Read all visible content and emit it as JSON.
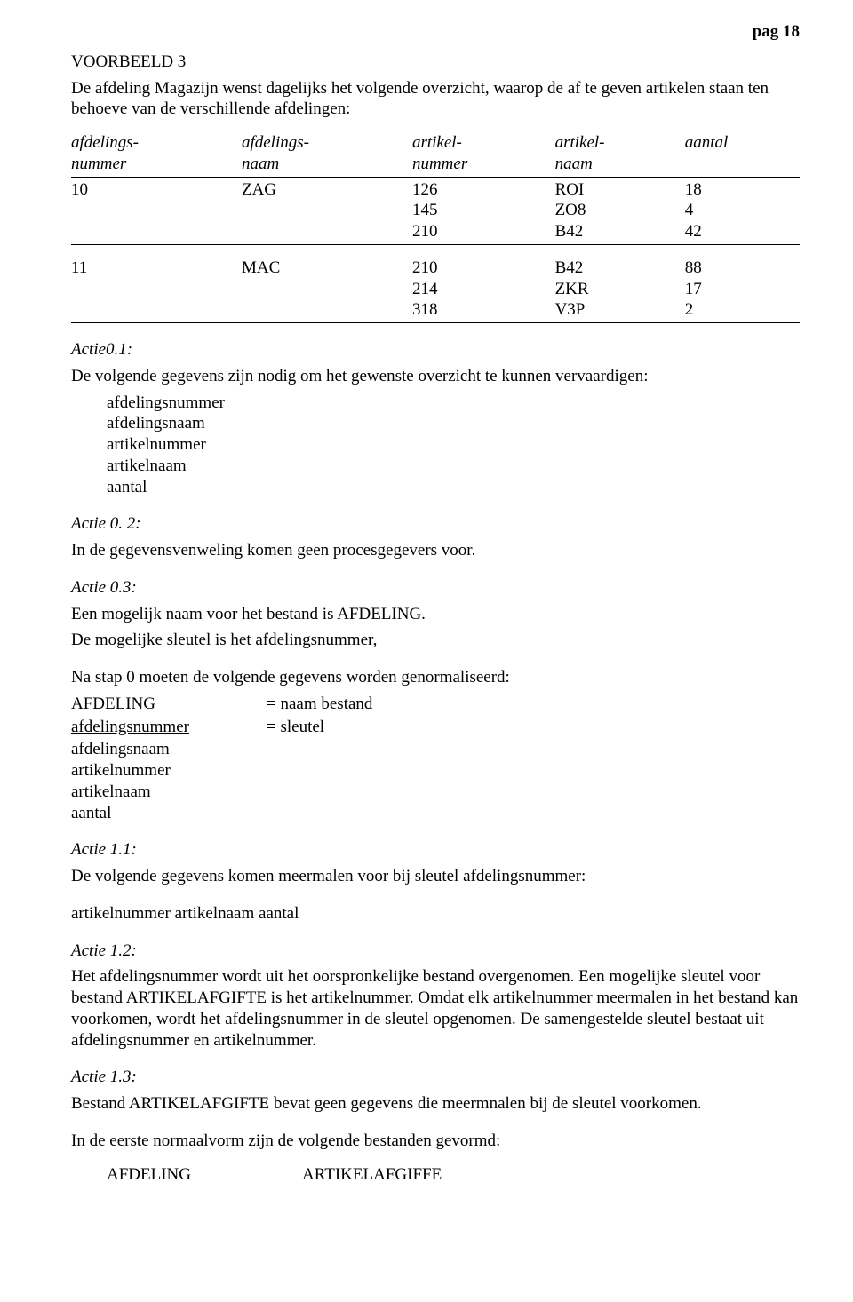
{
  "page_label": "pag 18",
  "voorbeeld_title": "VOORBEELD 3",
  "intro_text": "De afdeling Magazijn wenst dagelijks het volgende overzicht, waarop de af te geven artikelen staan ten behoeve van de verschillende afdelingen:",
  "table": {
    "headers": {
      "c1a": "afdelings-",
      "c1b": "nummer",
      "c2a": "afdelings-",
      "c2b": "naam",
      "c3a": "artikel-",
      "c3b": "nummer",
      "c4a": "artikel-",
      "c4b": "naam",
      "c5a": "aantal",
      "c5b": ""
    },
    "rows": [
      {
        "c1": "10",
        "c2": "ZAG",
        "c3": "126",
        "c4": "ROI",
        "c5": "18"
      },
      {
        "c1": "",
        "c2": "",
        "c3": "145",
        "c4": "ZO8",
        "c5": "4"
      },
      {
        "c1": "",
        "c2": "",
        "c3": "210",
        "c4": "B42",
        "c5": "42"
      },
      {
        "c1": "11",
        "c2": "MAC",
        "c3": "210",
        "c4": "B42",
        "c5": "88"
      },
      {
        "c1": "",
        "c2": "",
        "c3": "214",
        "c4": "ZKR",
        "c5": "17"
      },
      {
        "c1": "",
        "c2": "",
        "c3": "318",
        "c4": "V3P",
        "c5": "2"
      }
    ]
  },
  "actie01": {
    "title": "Actie0.1:",
    "text": "De volgende gegevens zijn nodig om het gewenste overzicht te kunnen vervaardigen:",
    "items": [
      "afdelingsnummer",
      "afdelingsnaam",
      "artikelnummer",
      "artikelnaam",
      "aantal"
    ]
  },
  "actie02": {
    "title": "Actie 0. 2:",
    "text": "In de gegevensvenweling komen geen procesgegevers voor."
  },
  "actie03": {
    "title": "Actie 0.3:",
    "line1": "Een mogelijk naam voor het bestand is AFDELING.",
    "line2": "De mogelijke sleutel is het afdelingsnummer,"
  },
  "na_stap0": "Na stap 0 moeten de volgende gegevens worden genormaliseerd:",
  "kv_afdeling": {
    "k": "AFDELING",
    "v": "= naam bestand"
  },
  "kv_sleutel": {
    "k": "afdelingsnummer",
    "v": "= sleutel"
  },
  "sleutel_followers": [
    "afdelingsnaam",
    "artikelnummer",
    "artikelnaam",
    "aantal"
  ],
  "actie11": {
    "title": "Actie 1.1:",
    "text": "De volgende gegevens komen meermalen voor bij sleutel afdelingsnummer:",
    "line2": "artikelnummer artikelnaam aantal"
  },
  "actie12": {
    "title": "Actie 1.2:",
    "text": "Het afdelingsnummer wordt uit het oorspronkelijke bestand overgenomen. Een mogelijke sleutel voor bestand ARTIKELAFGIFTE is het artikelnummer. Omdat elk artikelnummer meermalen in het bestand kan voorkomen, wordt het afdelingsnummer in de sleutel opgenomen. De samengestelde sleutel bestaat uit afdelingsnummer en artikelnummer."
  },
  "actie13": {
    "title": "Actie 1.3:",
    "text": "Bestand ARTIKELAFGIFTE bevat geen gegevens die meermnalen bij de sleutel voorkomen."
  },
  "nv1_intro": "In de eerste normaalvorm zijn de volgende bestanden gevormd:",
  "nv1_pair": {
    "a": "AFDELING",
    "b": "ARTIKELAFGIFFE"
  }
}
